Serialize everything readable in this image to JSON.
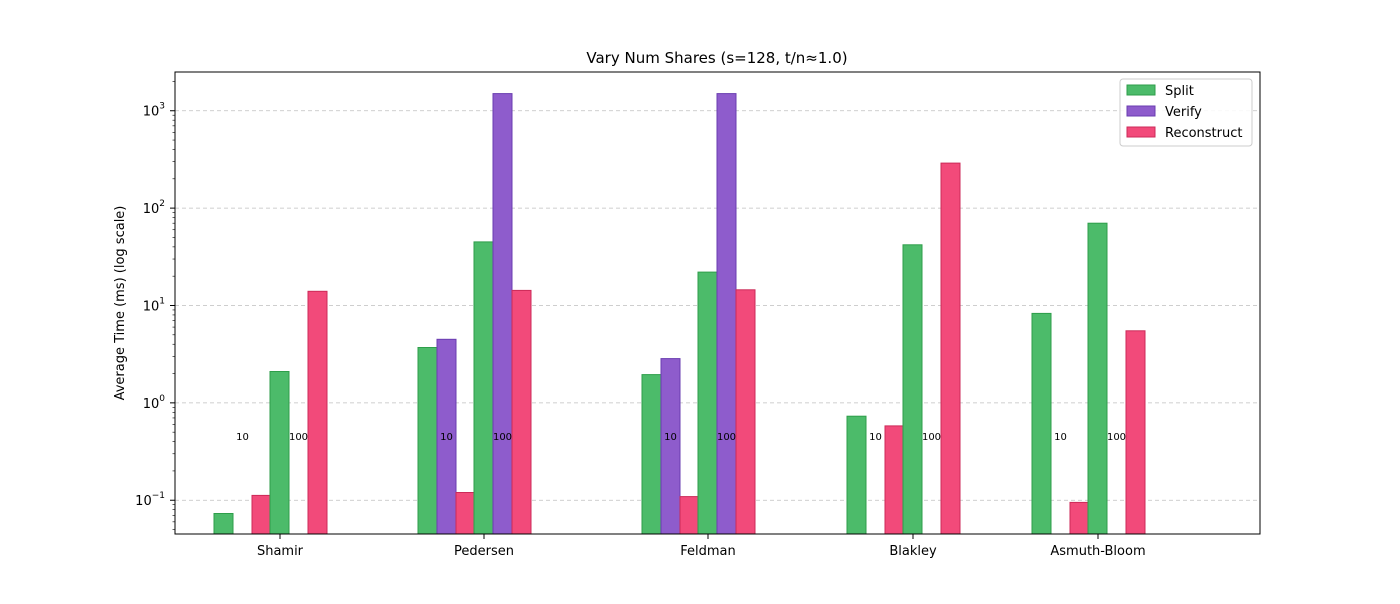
{
  "chart_data": {
    "type": "bar",
    "title": "Vary Num Shares (s=128, t/n≈1.0)",
    "xlabel": "",
    "ylabel": "Average Time (ms) (log scale)",
    "yscale": "log",
    "ylim": [
      0.045,
      2500
    ],
    "yticks": [
      {
        "base": "10",
        "exp": "−1",
        "value": 0.1
      },
      {
        "base": "10",
        "exp": "0",
        "value": 1
      },
      {
        "base": "10",
        "exp": "1",
        "value": 10
      },
      {
        "base": "10",
        "exp": "2",
        "value": 100
      },
      {
        "base": "10",
        "exp": "3",
        "value": 1000
      }
    ],
    "grid": "y-dashed",
    "legend_position": "top-right",
    "series_colors": {
      "Split": {
        "fill": "#4cbb6a",
        "stroke": "#2e9e4a"
      },
      "Verify": {
        "fill": "#8e5ccc",
        "stroke": "#6a3db0"
      },
      "Reconstruct": {
        "fill": "#f24a7a",
        "stroke": "#cc2a58"
      }
    },
    "legend": [
      {
        "name": "Split"
      },
      {
        "name": "Verify"
      },
      {
        "name": "Reconstruct"
      }
    ],
    "categories": [
      "Shamir",
      "Pedersen",
      "Feldman",
      "Blakley",
      "Asmuth-Bloom"
    ],
    "groups": [
      {
        "category": "Shamir",
        "subgroups": [
          {
            "label": "10",
            "Split": 0.073,
            "Verify": null,
            "Reconstruct": 0.112
          },
          {
            "label": "100",
            "Split": 2.1,
            "Verify": null,
            "Reconstruct": 14.0
          }
        ]
      },
      {
        "category": "Pedersen",
        "subgroups": [
          {
            "label": "10",
            "Split": 3.7,
            "Verify": 4.5,
            "Reconstruct": 0.12
          },
          {
            "label": "100",
            "Split": 45.0,
            "Verify": 1500,
            "Reconstruct": 14.3
          }
        ]
      },
      {
        "category": "Feldman",
        "subgroups": [
          {
            "label": "10",
            "Split": 1.95,
            "Verify": 2.85,
            "Reconstruct": 0.109
          },
          {
            "label": "100",
            "Split": 22.0,
            "Verify": 1500,
            "Reconstruct": 14.5
          }
        ]
      },
      {
        "category": "Blakley",
        "subgroups": [
          {
            "label": "10",
            "Split": 0.73,
            "Verify": null,
            "Reconstruct": 0.58
          },
          {
            "label": "100",
            "Split": 42.0,
            "Verify": null,
            "Reconstruct": 290
          }
        ]
      },
      {
        "category": "Asmuth-Bloom",
        "subgroups": [
          {
            "label": "10",
            "Split": 8.3,
            "Verify": null,
            "Reconstruct": 0.095
          },
          {
            "label": "100",
            "Split": 70.0,
            "Verify": null,
            "Reconstruct": 5.5
          }
        ]
      }
    ]
  }
}
